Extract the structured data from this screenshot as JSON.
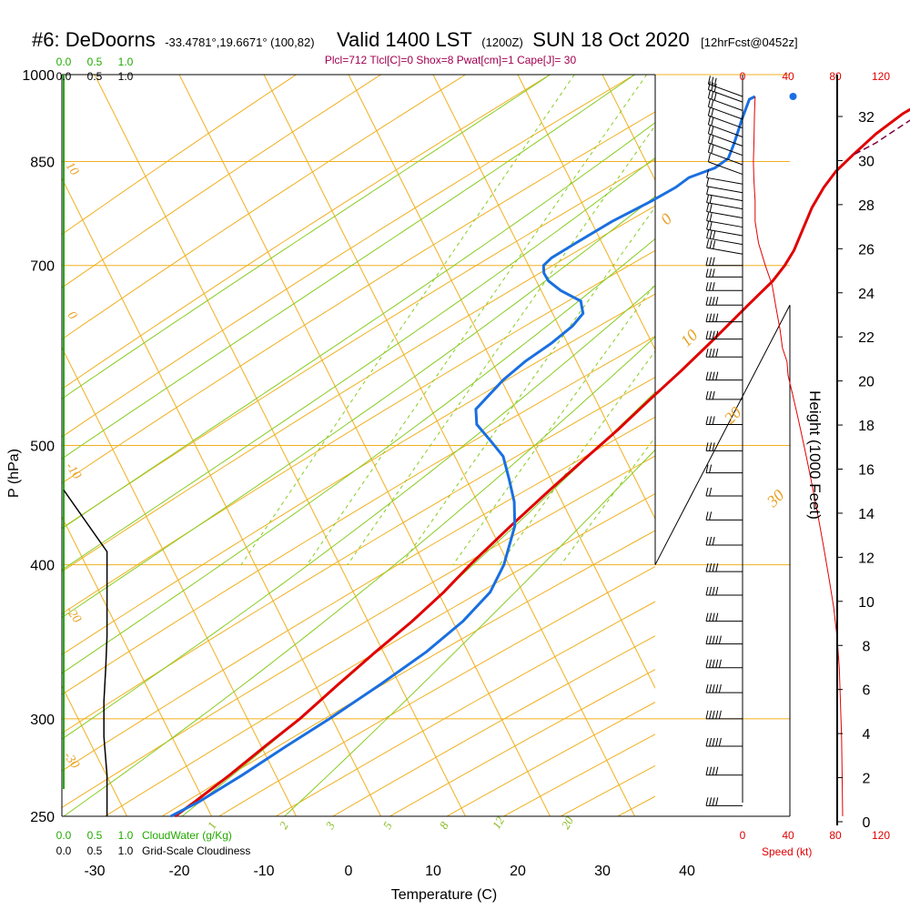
{
  "header": {
    "title_main": "#6: DeDoorns",
    "title_coords": "-33.4781°,19.6671° (100,82)",
    "title_valid": "Valid 1400 LST",
    "title_z": "(1200Z)",
    "title_date": "SUN 18 Oct 2020",
    "title_fcst": "[12hrFcst@0452z]",
    "params": "Plcl=712 Tlcl[C]=0 Shox=8 Pwat[cm]=1 Cape[J]= 30"
  },
  "colors": {
    "temperature": "#e00000",
    "dewpoint": "#1a6fe0",
    "parcel": "#800040",
    "isotherm": "#f0b020",
    "isobar": "#f0b020",
    "dry_adiabat": "#f0b020",
    "moist_adiabat": "#88cc22",
    "mixing_ratio": "#88cc22",
    "cloudwater": "#22aa00",
    "speed": "#e00000"
  },
  "chart_data": {
    "type": "line",
    "subtype": "skew-T log-P",
    "xlabel": "Temperature (C)",
    "ylabel": "P (hPa)",
    "right_ylabel": "Height (1000 Feet)",
    "x_ticks": [
      "-30",
      "-20",
      "-10",
      "0",
      "10",
      "20",
      "30",
      "40"
    ],
    "y_ticks": [
      "250",
      "300",
      "400",
      "500",
      "700",
      "850",
      "1000"
    ],
    "height_ticks": [
      "0",
      "2",
      "4",
      "6",
      "8",
      "10",
      "12",
      "14",
      "16",
      "18",
      "20",
      "22",
      "24",
      "26",
      "28",
      "30",
      "32"
    ],
    "isotherm_labels": [
      "0",
      "10",
      "20",
      "30"
    ],
    "dry_adiabat_labels": [
      "10",
      "0",
      "-10",
      "-20",
      "-30"
    ],
    "mixing_ratio_labels": [
      "1",
      "2",
      "3",
      "5",
      "8",
      "12",
      "20"
    ],
    "cloudwater_label": "CloudWater (g/Kg)",
    "cloudiness_label": "Grid-Scale Cloudiness",
    "cloudwater_ticks": [
      "0.0",
      "0.5",
      "1.0"
    ],
    "cloudiness_ticks": [
      "0.0",
      "0.5",
      "1.0"
    ],
    "speed_label": "Speed (kt)",
    "speed_ticks": [
      "0",
      "40",
      "80",
      "120"
    ],
    "series": [
      {
        "key": "temperature",
        "points": [
          [
            26.5,
            960
          ],
          [
            24,
            930
          ],
          [
            22,
            895
          ],
          [
            20.5,
            860
          ],
          [
            19.5,
            835
          ],
          [
            19,
            810
          ],
          [
            18.8,
            780
          ],
          [
            19,
            750
          ],
          [
            19.2,
            720
          ],
          [
            19,
            700
          ],
          [
            18.5,
            680
          ],
          [
            17,
            650
          ],
          [
            15,
            610
          ],
          [
            13,
            575
          ],
          [
            11,
            545
          ],
          [
            9,
            515
          ],
          [
            7,
            490
          ],
          [
            4.5,
            460
          ],
          [
            2,
            430
          ],
          [
            -0.5,
            400
          ],
          [
            -2,
            380
          ],
          [
            -4,
            360
          ],
          [
            -6.5,
            340
          ],
          [
            -9,
            320
          ],
          [
            -11.5,
            300
          ],
          [
            -14,
            285
          ],
          [
            -16.5,
            270
          ],
          [
            -19,
            257
          ],
          [
            -20.5,
            250
          ]
        ]
      },
      {
        "key": "dewpoint",
        "points": [
          [
            5.5,
            960
          ],
          [
            5,
            955
          ],
          [
            5.3,
            920
          ],
          [
            5.8,
            880
          ],
          [
            6,
            855
          ],
          [
            5,
            840
          ],
          [
            2.5,
            825
          ],
          [
            1.5,
            810
          ],
          [
            -0.5,
            790
          ],
          [
            -4,
            760
          ],
          [
            -7,
            730
          ],
          [
            -9,
            710
          ],
          [
            -9.5,
            700
          ],
          [
            -9,
            690
          ],
          [
            -8,
            680
          ],
          [
            -6,
            668
          ],
          [
            -3,
            655
          ],
          [
            -2,
            640
          ],
          [
            -2.5,
            625
          ],
          [
            -4,
            605
          ],
          [
            -6,
            585
          ],
          [
            -7.5,
            565
          ],
          [
            -9,
            535
          ],
          [
            -8,
            520
          ],
          [
            -5.5,
            505
          ],
          [
            -3,
            490
          ],
          [
            -1,
            470
          ],
          [
            1,
            450
          ],
          [
            2.5,
            430
          ],
          [
            3.5,
            400
          ],
          [
            3.5,
            380
          ],
          [
            2,
            360
          ],
          [
            -0.5,
            340
          ],
          [
            -4,
            320
          ],
          [
            -8,
            300
          ],
          [
            -11.5,
            285
          ],
          [
            -15,
            270
          ],
          [
            -18.5,
            257
          ],
          [
            -21,
            250
          ]
        ]
      },
      {
        "key": "parcel",
        "points": [
          [
            26.5,
            960
          ],
          [
            27.5,
            950
          ],
          [
            25,
            915
          ],
          [
            22.5,
            880
          ],
          [
            20.5,
            860
          ]
        ]
      }
    ],
    "surface_temperature_marker": [
      28,
      960
    ],
    "surface_dewpoint_marker": [
      10,
      960
    ],
    "cloudiness_profile": [
      [
        0.7,
        250
      ],
      [
        0.7,
        270
      ],
      [
        0.65,
        290
      ],
      [
        0.65,
        310
      ],
      [
        0.68,
        330
      ],
      [
        0.7,
        350
      ],
      [
        0.7,
        380
      ],
      [
        0.7,
        410
      ],
      [
        0.0,
        460
      ]
    ],
    "speed_profile": [
      [
        11,
        960
      ],
      [
        10.5,
        930
      ],
      [
        10,
        880
      ],
      [
        9.5,
        850
      ],
      [
        10,
        820
      ],
      [
        11,
        790
      ],
      [
        11,
        760
      ],
      [
        14,
        730
      ],
      [
        20,
        700
      ],
      [
        26,
        675
      ],
      [
        29,
        650
      ],
      [
        33,
        620
      ],
      [
        35,
        600
      ],
      [
        39,
        585
      ],
      [
        40,
        570
      ],
      [
        44,
        550
      ],
      [
        48,
        530
      ],
      [
        52,
        510
      ],
      [
        56,
        490
      ],
      [
        60,
        470
      ],
      [
        64,
        450
      ],
      [
        68,
        430
      ],
      [
        72,
        410
      ],
      [
        76,
        390
      ],
      [
        80,
        370
      ],
      [
        83,
        350
      ],
      [
        85,
        330
      ],
      [
        86,
        310
      ],
      [
        87,
        290
      ],
      [
        87.5,
        270
      ],
      [
        88,
        250
      ]
    ],
    "wind_barbs_pressures": [
      255,
      270,
      285,
      300,
      315,
      330,
      345,
      360,
      378,
      395,
      415,
      435,
      455,
      475,
      495,
      520,
      545,
      565,
      590,
      610,
      630,
      650,
      668,
      685,
      700,
      715,
      728,
      740,
      752,
      765,
      778,
      790,
      802,
      815,
      830,
      845,
      860,
      875,
      890,
      905,
      920,
      935,
      950,
      960
    ],
    "wind_barb_speeds_kt": [
      40,
      42,
      45,
      48,
      50,
      52,
      48,
      44,
      40,
      35,
      25,
      15,
      15,
      20,
      25,
      30,
      30,
      35,
      35,
      40,
      40,
      35,
      30,
      30,
      25,
      25,
      25,
      20,
      20,
      15,
      15,
      10,
      10,
      10,
      10,
      15,
      15,
      20,
      20,
      20,
      20,
      25,
      25,
      25
    ]
  }
}
